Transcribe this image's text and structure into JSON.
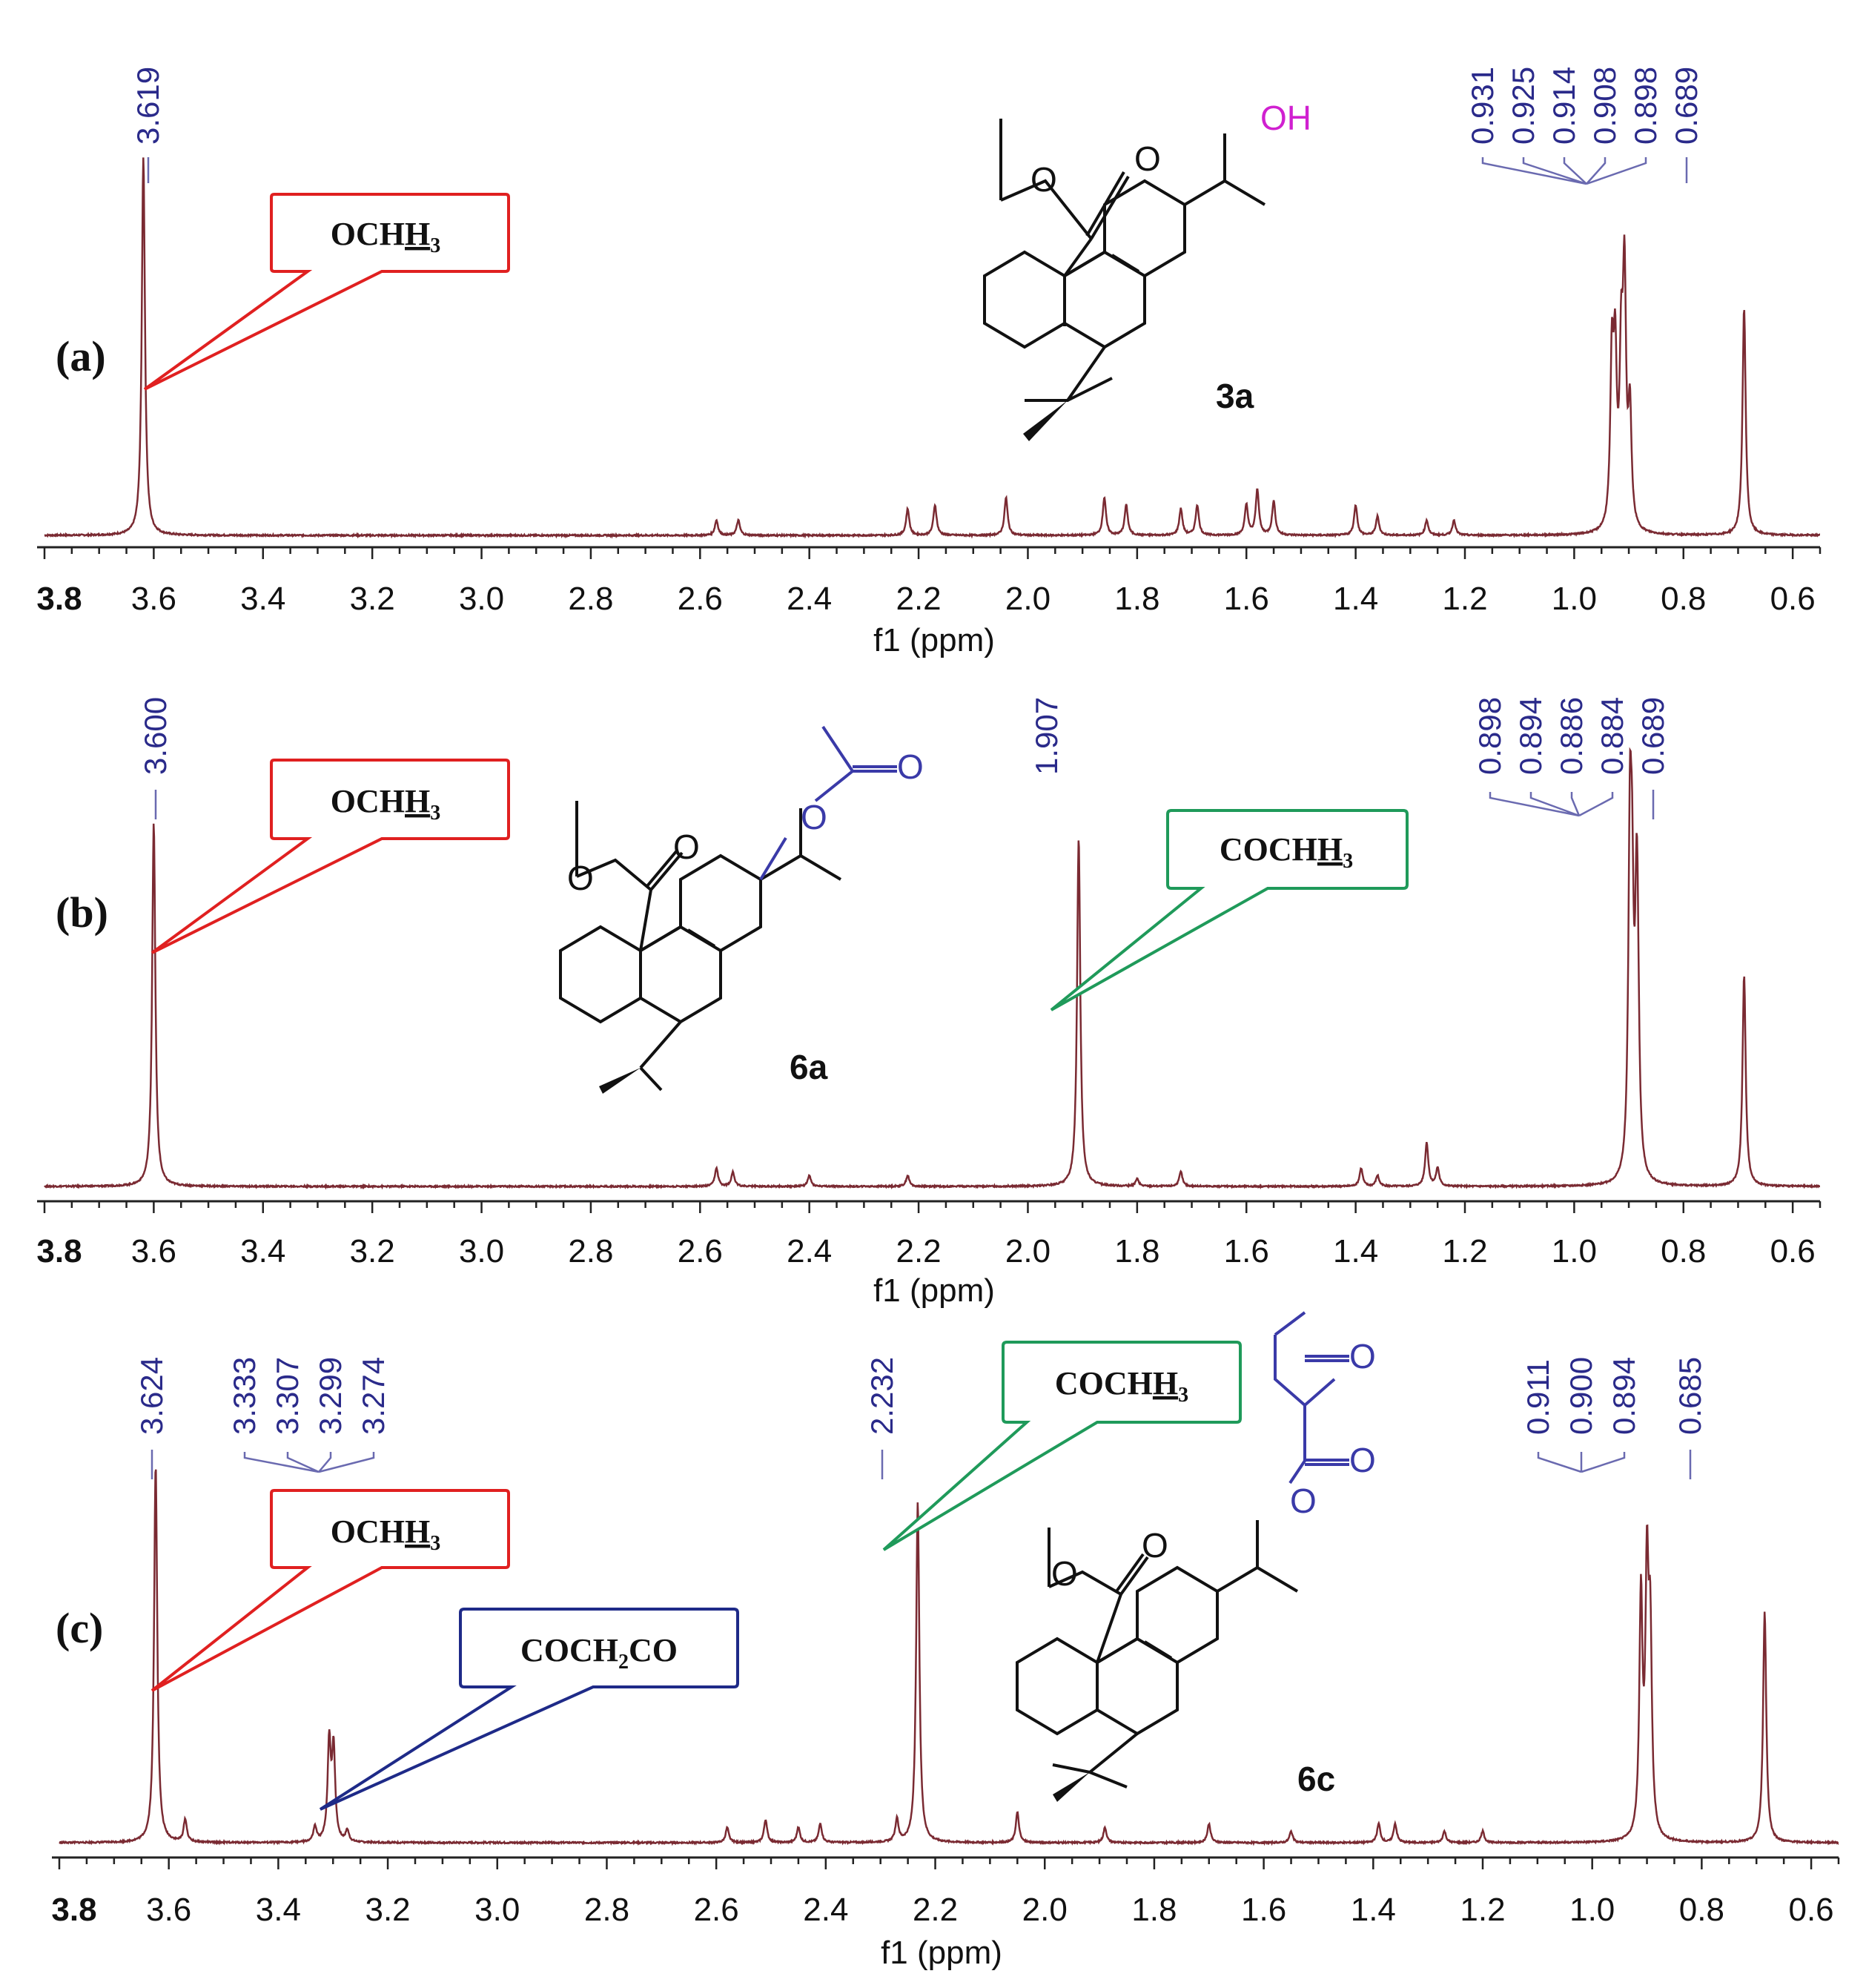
{
  "colors": {
    "spectrum": "#7a2a32",
    "peak_label": "#2a2a8a",
    "callout_red": "#e02020",
    "callout_green": "#1f9a5a",
    "callout_blue": "#1e2a88",
    "hydroxyl": "#d020d0",
    "ester_blue": "#3a3aa8",
    "axis": "#222222"
  },
  "chart_data": [
    {
      "type": "line",
      "panel": "(a)",
      "compound": "3a",
      "xlabel": "f1 (ppm)",
      "xlim": [
        3.8,
        0.55
      ],
      "ticks": [
        "3.8",
        "3.6",
        "3.4",
        "3.2",
        "3.0",
        "2.8",
        "2.6",
        "2.4",
        "2.2",
        "2.0",
        "1.8",
        "1.6",
        "1.4",
        "1.2",
        "1.0",
        "0.8",
        "0.6"
      ],
      "peak_labels": [
        "3.619",
        "0.931",
        "0.925",
        "0.914",
        "0.908",
        "0.898",
        "0.689"
      ],
      "peaks": [
        {
          "x": 3.619,
          "h": 1.0
        },
        {
          "x": 2.57,
          "h": 0.04
        },
        {
          "x": 2.53,
          "h": 0.04
        },
        {
          "x": 2.22,
          "h": 0.07
        },
        {
          "x": 2.17,
          "h": 0.08
        },
        {
          "x": 2.04,
          "h": 0.1
        },
        {
          "x": 1.86,
          "h": 0.1
        },
        {
          "x": 1.82,
          "h": 0.08
        },
        {
          "x": 1.72,
          "h": 0.07
        },
        {
          "x": 1.69,
          "h": 0.08
        },
        {
          "x": 1.6,
          "h": 0.08
        },
        {
          "x": 1.58,
          "h": 0.12
        },
        {
          "x": 1.55,
          "h": 0.09
        },
        {
          "x": 1.4,
          "h": 0.08
        },
        {
          "x": 1.36,
          "h": 0.05
        },
        {
          "x": 1.27,
          "h": 0.04
        },
        {
          "x": 1.22,
          "h": 0.04
        },
        {
          "x": 0.931,
          "h": 0.43
        },
        {
          "x": 0.925,
          "h": 0.42
        },
        {
          "x": 0.914,
          "h": 0.41
        },
        {
          "x": 0.908,
          "h": 0.63
        },
        {
          "x": 0.898,
          "h": 0.3
        },
        {
          "x": 0.689,
          "h": 0.6
        }
      ],
      "callouts": [
        {
          "text": "OCH3",
          "color": "red",
          "points_to": 3.619
        }
      ]
    },
    {
      "type": "line",
      "panel": "(b)",
      "compound": "6a",
      "xlabel": "f1 (ppm)",
      "xlim": [
        3.8,
        0.55
      ],
      "ticks": [
        "3.8",
        "3.6",
        "3.4",
        "3.2",
        "3.0",
        "2.8",
        "2.6",
        "2.4",
        "2.2",
        "2.0",
        "1.8",
        "1.6",
        "1.4",
        "1.2",
        "1.0",
        "0.8",
        "0.6"
      ],
      "peak_labels": [
        "3.600",
        "1.907",
        "0.898",
        "0.894",
        "0.886",
        "0.884",
        "0.689"
      ],
      "peaks": [
        {
          "x": 3.6,
          "h": 1.0
        },
        {
          "x": 2.57,
          "h": 0.05
        },
        {
          "x": 2.54,
          "h": 0.04
        },
        {
          "x": 2.4,
          "h": 0.03
        },
        {
          "x": 2.22,
          "h": 0.03
        },
        {
          "x": 1.907,
          "h": 0.96
        },
        {
          "x": 1.8,
          "h": 0.02
        },
        {
          "x": 1.72,
          "h": 0.04
        },
        {
          "x": 1.39,
          "h": 0.05
        },
        {
          "x": 1.36,
          "h": 0.03
        },
        {
          "x": 1.27,
          "h": 0.12
        },
        {
          "x": 1.25,
          "h": 0.05
        },
        {
          "x": 0.898,
          "h": 0.85
        },
        {
          "x": 0.894,
          "h": 0.6
        },
        {
          "x": 0.886,
          "h": 0.5
        },
        {
          "x": 0.884,
          "h": 0.4
        },
        {
          "x": 0.689,
          "h": 0.58
        }
      ],
      "callouts": [
        {
          "text": "OCH3",
          "color": "red",
          "points_to": 3.6
        },
        {
          "text": "COCH3",
          "color": "green",
          "points_to": 1.907
        }
      ]
    },
    {
      "type": "line",
      "panel": "(c)",
      "compound": "6c",
      "xlabel": "f1 (ppm)",
      "xlim": [
        3.8,
        0.55
      ],
      "ticks": [
        "3.8",
        "3.6",
        "3.4",
        "3.2",
        "3.0",
        "2.8",
        "2.6",
        "2.4",
        "2.2",
        "2.0",
        "1.8",
        "1.6",
        "1.4",
        "1.2",
        "1.0",
        "0.8",
        "0.6"
      ],
      "peak_labels": [
        "3.624",
        "3.333",
        "3.307",
        "3.299",
        "3.274",
        "2.232",
        "0.911",
        "0.900",
        "0.894",
        "0.685"
      ],
      "peaks": [
        {
          "x": 3.624,
          "h": 1.0
        },
        {
          "x": 3.57,
          "h": 0.06
        },
        {
          "x": 3.333,
          "h": 0.04
        },
        {
          "x": 3.307,
          "h": 0.26
        },
        {
          "x": 3.299,
          "h": 0.24
        },
        {
          "x": 3.274,
          "h": 0.03
        },
        {
          "x": 2.58,
          "h": 0.04
        },
        {
          "x": 2.51,
          "h": 0.06
        },
        {
          "x": 2.45,
          "h": 0.04
        },
        {
          "x": 2.41,
          "h": 0.05
        },
        {
          "x": 2.27,
          "h": 0.06
        },
        {
          "x": 2.232,
          "h": 0.9
        },
        {
          "x": 2.05,
          "h": 0.08
        },
        {
          "x": 1.89,
          "h": 0.04
        },
        {
          "x": 1.7,
          "h": 0.05
        },
        {
          "x": 1.55,
          "h": 0.03
        },
        {
          "x": 1.39,
          "h": 0.05
        },
        {
          "x": 1.36,
          "h": 0.05
        },
        {
          "x": 1.27,
          "h": 0.03
        },
        {
          "x": 1.2,
          "h": 0.03
        },
        {
          "x": 0.911,
          "h": 0.63
        },
        {
          "x": 0.9,
          "h": 0.66
        },
        {
          "x": 0.894,
          "h": 0.5
        },
        {
          "x": 0.685,
          "h": 0.61
        }
      ],
      "callouts": [
        {
          "text": "OCH3",
          "color": "red",
          "points_to": 3.624
        },
        {
          "text": "COCH2CO",
          "color": "blue",
          "points_to": 3.3
        },
        {
          "text": "COCH3",
          "color": "green",
          "points_to": 2.232
        }
      ]
    }
  ],
  "callout_text": {
    "och3_base": "OCH",
    "och3_sub": "3",
    "coch3_base": "COCH",
    "coch3_sub": "3",
    "coch2co_pre": "COCH",
    "coch2co_sub": "2",
    "coch2co_post": "CO",
    "h_letter": "H"
  },
  "atoms": {
    "oxygen": "O",
    "hydroxyl": "OH"
  }
}
